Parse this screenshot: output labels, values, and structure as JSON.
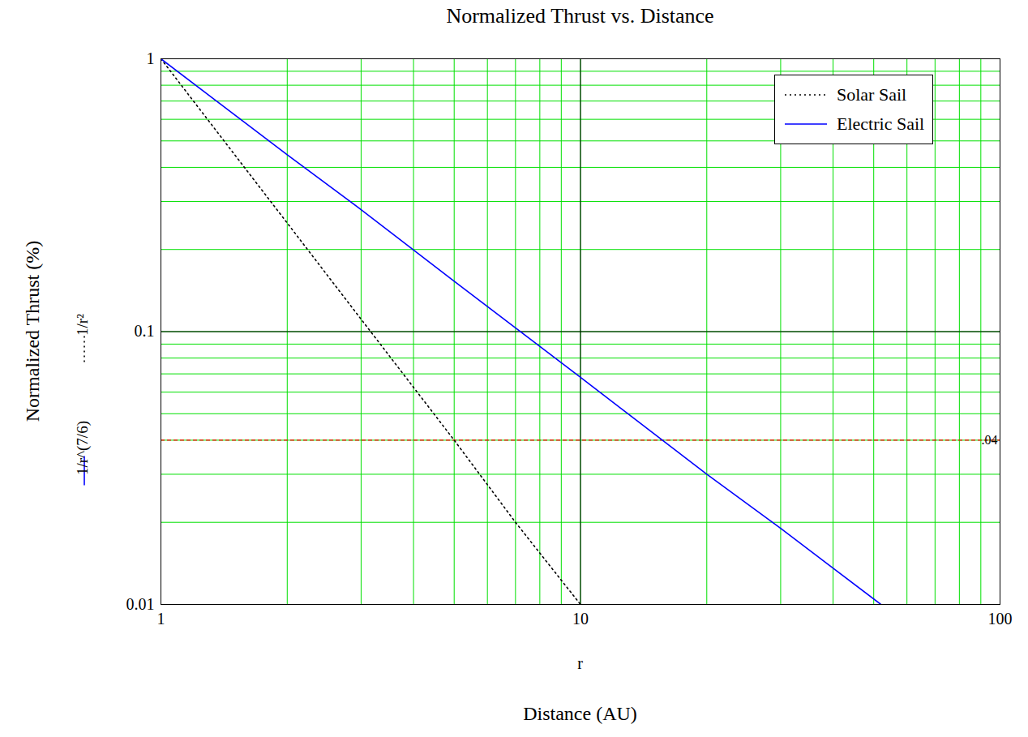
{
  "chart_data": {
    "type": "line",
    "title": "Normalized Thrust vs. Distance",
    "xlabel": "Distance (AU)",
    "x_symbol": "r",
    "ylabel": "Normalized Thrust (%)",
    "log": true,
    "grid": true,
    "legend": "top-right",
    "xlim": [
      1,
      100
    ],
    "ylim": [
      0.01,
      1
    ],
    "xticks": [
      1,
      10,
      100
    ],
    "yticks": [
      0.01,
      0.1,
      1
    ],
    "series": [
      {
        "name": "Solar Sail",
        "expression": "1/r²",
        "color": "#000000",
        "line_style": "dotted",
        "x": [
          1,
          2,
          3,
          5,
          7,
          10
        ],
        "values": [
          1,
          0.25,
          0.111,
          0.04,
          0.02,
          0.01
        ]
      },
      {
        "name": "Electric Sail",
        "expression": "1/r^(7/6)",
        "color": "#0000ff",
        "line_style": "solid",
        "x": [
          1,
          2,
          3,
          5,
          10,
          20,
          30,
          52
        ],
        "values": [
          1,
          0.445,
          0.28,
          0.153,
          0.068,
          0.03,
          0.019,
          0.01
        ]
      }
    ],
    "reference_line": {
      "value": 0.04,
      "label": ".04",
      "color": "#ff0000",
      "line_style": "dashed"
    }
  }
}
